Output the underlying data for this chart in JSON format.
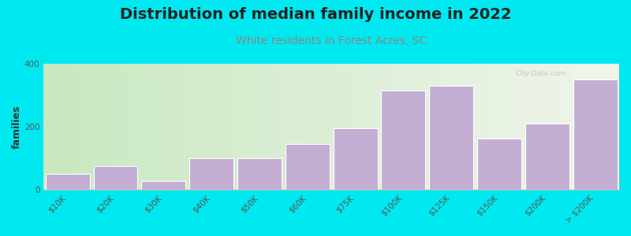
{
  "title": "Distribution of median family income in 2022",
  "subtitle": "White residents in Forest Acres, SC",
  "ylabel": "families",
  "categories": [
    "$10K",
    "$20K",
    "$30K",
    "$40K",
    "$50K",
    "$60K",
    "$75K",
    "$100K",
    "$125K",
    "$150K",
    "$200K",
    "> $200K"
  ],
  "values": [
    50,
    75,
    28,
    100,
    100,
    145,
    195,
    315,
    330,
    162,
    210,
    350
  ],
  "bar_color": "#c4aed4",
  "background_outer": "#00e8f0",
  "ylim": [
    0,
    400
  ],
  "yticks": [
    0,
    200,
    400
  ],
  "title_fontsize": 14,
  "subtitle_fontsize": 10,
  "ylabel_fontsize": 9,
  "tick_fontsize": 7.5,
  "watermark": "City-Data.com",
  "subtitle_color": "#888888"
}
